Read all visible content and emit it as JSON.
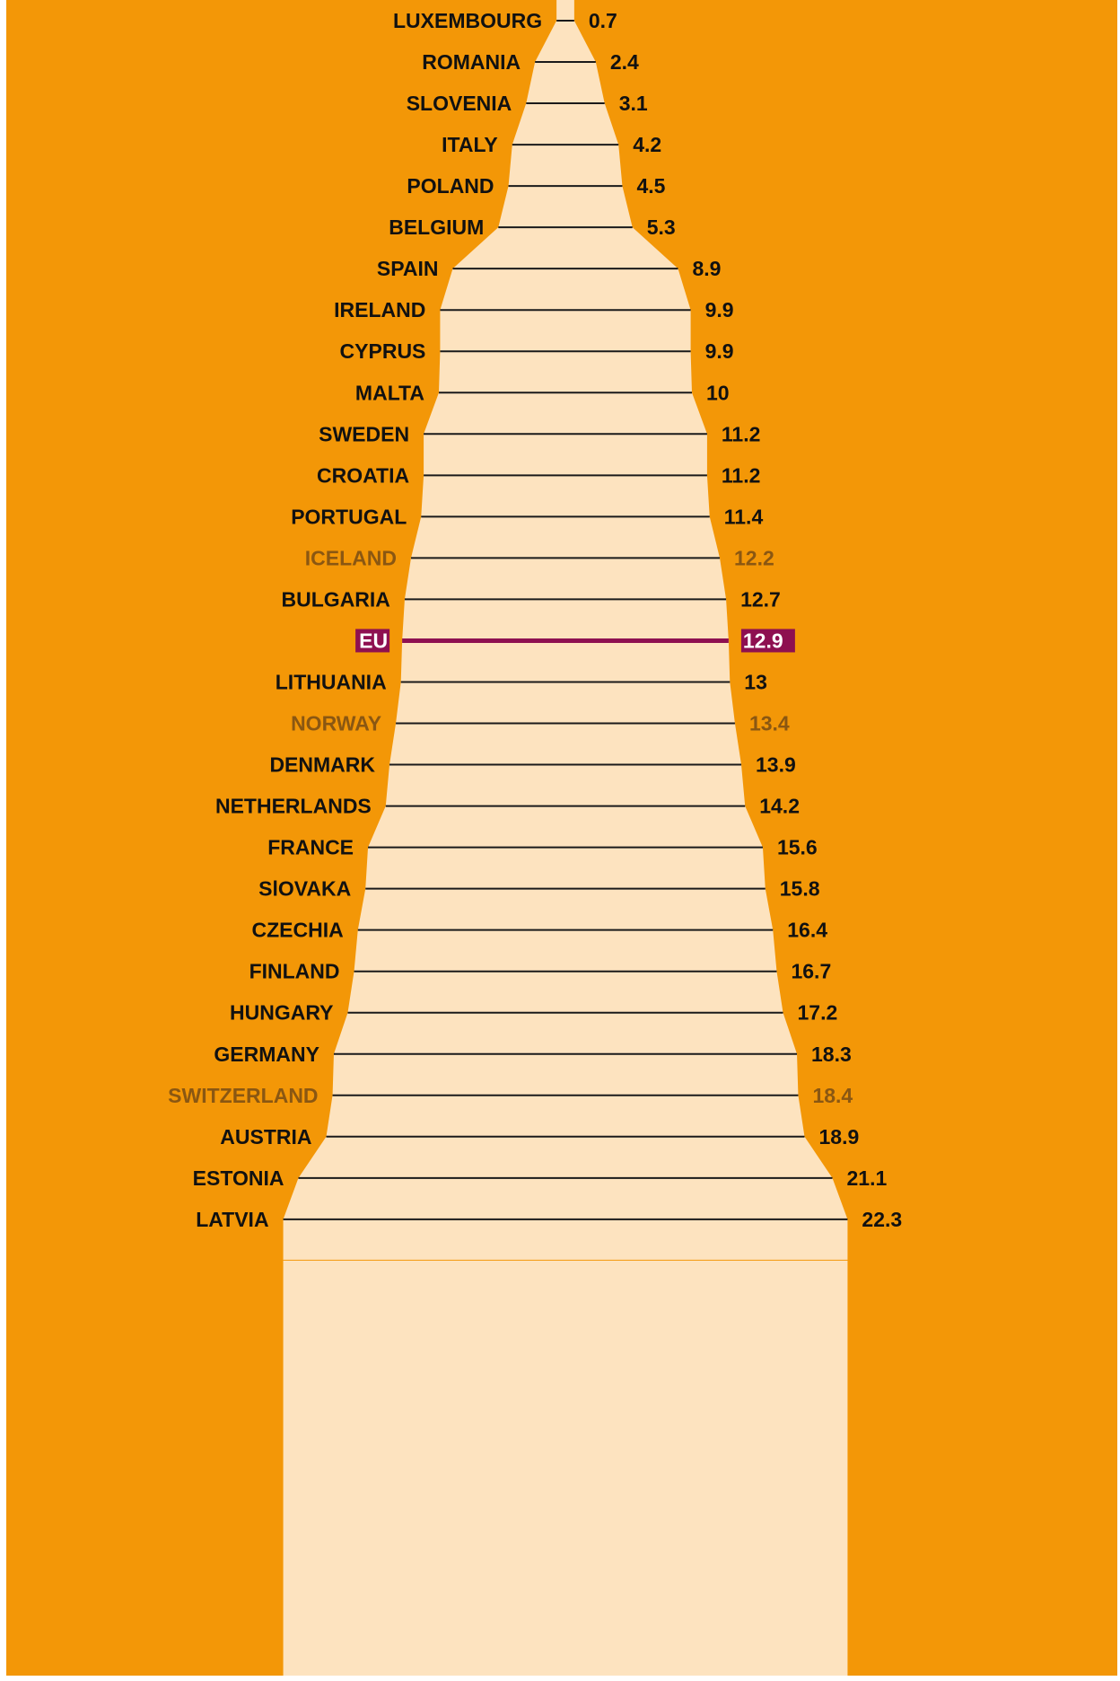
{
  "chart_data": {
    "type": "bar",
    "title": "",
    "xlabel": "",
    "ylabel": "",
    "orientation": "horizontal-centered",
    "categories": [
      "LUXEMBOURG",
      "ROMANIA",
      "SLOVENIA",
      "ITALY",
      "POLAND",
      "BELGIUM",
      "SPAIN",
      "IRELAND",
      "CYPRUS",
      "MALTA",
      "SWEDEN",
      "CROATIA",
      "PORTUGAL",
      "ICELAND",
      "BULGARIA",
      "EU",
      "LITHUANIA",
      "NORWAY",
      "DENMARK",
      "NETHERLANDS",
      "FRANCE",
      "SlOVAKA",
      "CZECHIA",
      "FINLAND",
      "HUNGARY",
      "GERMANY",
      "SWITZERLAND",
      "AUSTRIA",
      "ESTONIA",
      "LATVIA"
    ],
    "values": [
      0.7,
      2.4,
      3.1,
      4.2,
      4.5,
      5.3,
      8.9,
      9.9,
      9.9,
      10,
      11.2,
      11.2,
      11.4,
      12.2,
      12.7,
      12.9,
      13,
      13.4,
      13.9,
      14.2,
      15.6,
      15.8,
      16.4,
      16.7,
      17.2,
      18.3,
      18.4,
      18.9,
      21.1,
      22.3
    ],
    "value_labels": [
      "0.7",
      "2.4",
      "3.1",
      "4.2",
      "4.5",
      "5.3",
      "8.9",
      "9.9",
      "9.9",
      "10",
      "11.2",
      "11.2",
      "11.4",
      "12.2",
      "12.7",
      "12.9",
      "13",
      "13.4",
      "13.9",
      "14.2",
      "15.6",
      "15.8",
      "16.4",
      "16.7",
      "17.2",
      "18.3",
      "18.4",
      "18.9",
      "21.1",
      "22.3"
    ],
    "groups": [
      "eu-member",
      "eu-member",
      "eu-member",
      "eu-member",
      "eu-member",
      "eu-member",
      "eu-member",
      "eu-member",
      "eu-member",
      "eu-member",
      "eu-member",
      "eu-member",
      "eu-member",
      "non-eu",
      "eu-member",
      "eu-average",
      "eu-member",
      "non-eu",
      "eu-member",
      "eu-member",
      "eu-member",
      "eu-member",
      "eu-member",
      "eu-member",
      "eu-member",
      "eu-member",
      "non-eu",
      "eu-member",
      "eu-member",
      "eu-member"
    ],
    "xlim": [
      0,
      22.3
    ],
    "grid": false,
    "legend": "none"
  },
  "colors": {
    "background": "#F39707",
    "fill": "#FDE3BF",
    "line": "#1A1A1A",
    "label": "#111111",
    "non_eu_label": "#8A5712",
    "eu_highlight": "#8E1050",
    "eu_text": "#FFFFFF"
  }
}
